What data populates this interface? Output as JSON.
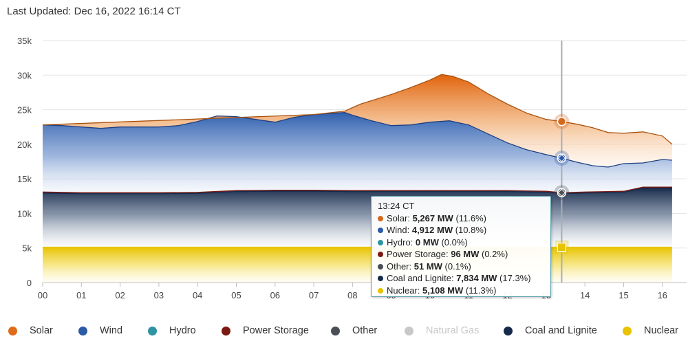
{
  "header": {
    "last_updated": "Last Updated: Dec 16, 2022 16:14 CT"
  },
  "chart_data": {
    "type": "area",
    "stacked": true,
    "grid": true,
    "legend_position": "bottom",
    "x_ticks": [
      "00",
      "01",
      "02",
      "03",
      "04",
      "05",
      "06",
      "07",
      "08",
      "09",
      "10",
      "11",
      "12",
      "13",
      "14",
      "15",
      "16"
    ],
    "y_ticks": [
      "0",
      "5k",
      "10k",
      "15k",
      "20k",
      "25k",
      "30k",
      "35k"
    ],
    "ylim": [
      0,
      35000
    ],
    "xlim": [
      0,
      16.5
    ],
    "x_unit": "hour of day (CT)",
    "cursor_x": 13.4,
    "nuclear_mw": 5108,
    "totals": {
      "coal_and_lignite_top": {
        "x": [
          0,
          1,
          2,
          3,
          4,
          5,
          6,
          7,
          8,
          9,
          10,
          11,
          12,
          13,
          13.4,
          14,
          15,
          15.5,
          16,
          16.25
        ],
        "y": [
          13100,
          13000,
          13000,
          13000,
          13050,
          13300,
          13350,
          13350,
          13300,
          13300,
          13300,
          13300,
          13300,
          13200,
          13000,
          13100,
          13200,
          13800,
          13800,
          13800
        ]
      },
      "wind_top": {
        "x": [
          0,
          0.5,
          1,
          1.5,
          2,
          2.5,
          3,
          3.5,
          4,
          4.5,
          5,
          5.5,
          6,
          6.5,
          7,
          7.5,
          7.8,
          8,
          8.5,
          9,
          9.5,
          10,
          10.5,
          11,
          11.5,
          12,
          12.5,
          13,
          13.4,
          13.8,
          14.2,
          14.6,
          15,
          15.5,
          16,
          16.25
        ],
        "y": [
          22800,
          22700,
          22500,
          22300,
          22500,
          22500,
          22500,
          22700,
          23300,
          24100,
          24000,
          23600,
          23200,
          23900,
          24300,
          24500,
          24600,
          24200,
          23400,
          22700,
          22800,
          23200,
          23400,
          22800,
          21500,
          20200,
          19200,
          18500,
          18000,
          17400,
          16900,
          16700,
          17200,
          17300,
          17800,
          17700
        ]
      },
      "solar_top": {
        "x": [
          0,
          7,
          7.8,
          8.2,
          8.6,
          9,
          9.5,
          10,
          10.3,
          10.6,
          11,
          11.5,
          12,
          12.5,
          13,
          13.4,
          13.8,
          14.2,
          14.6,
          15,
          15.5,
          16,
          16.25
        ],
        "y": [
          22800,
          24300,
          24800,
          25800,
          26500,
          27200,
          28200,
          29300,
          30100,
          29800,
          29000,
          27300,
          25800,
          24500,
          23600,
          23300,
          22900,
          22400,
          21700,
          21600,
          21800,
          21200,
          20000
        ]
      }
    },
    "series": [
      {
        "name": "Solar",
        "color": "#e06b1a"
      },
      {
        "name": "Wind",
        "color": "#2a5aa8"
      },
      {
        "name": "Hydro",
        "color": "#2e93a3"
      },
      {
        "name": "Power Storage",
        "color": "#7a1a12"
      },
      {
        "name": "Other",
        "color": "#4a4f56"
      },
      {
        "name": "Natural Gas",
        "color": "#c8c8c8",
        "hidden": true
      },
      {
        "name": "Coal and Lignite",
        "color": "#162a4c"
      },
      {
        "name": "Nuclear",
        "color": "#e8c300"
      }
    ],
    "tooltip": {
      "time": "13:24 CT",
      "rows": [
        {
          "label": "Solar: ",
          "value": "5,267 MW",
          "pct": " (11.6%)",
          "color": "#d4691e"
        },
        {
          "label": "Wind: ",
          "value": "4,912 MW",
          "pct": " (10.8%)",
          "color": "#2a5aa8"
        },
        {
          "label": "Hydro: ",
          "value": "0 MW",
          "pct": " (0.0%)",
          "color": "#2e93a3"
        },
        {
          "label": "Power Storage: ",
          "value": "96 MW",
          "pct": " (0.2%)",
          "color": "#7a1a12"
        },
        {
          "label": "Other: ",
          "value": "51 MW",
          "pct": " (0.1%)",
          "color": "#4a4f56"
        },
        {
          "label": "Coal and Lignite: ",
          "value": "7,834 MW",
          "pct": " (17.3%)",
          "color": "#162a4c"
        },
        {
          "label": "Nuclear: ",
          "value": "5,108 MW",
          "pct": " (11.3%)",
          "color": "#e8c300"
        }
      ]
    }
  }
}
